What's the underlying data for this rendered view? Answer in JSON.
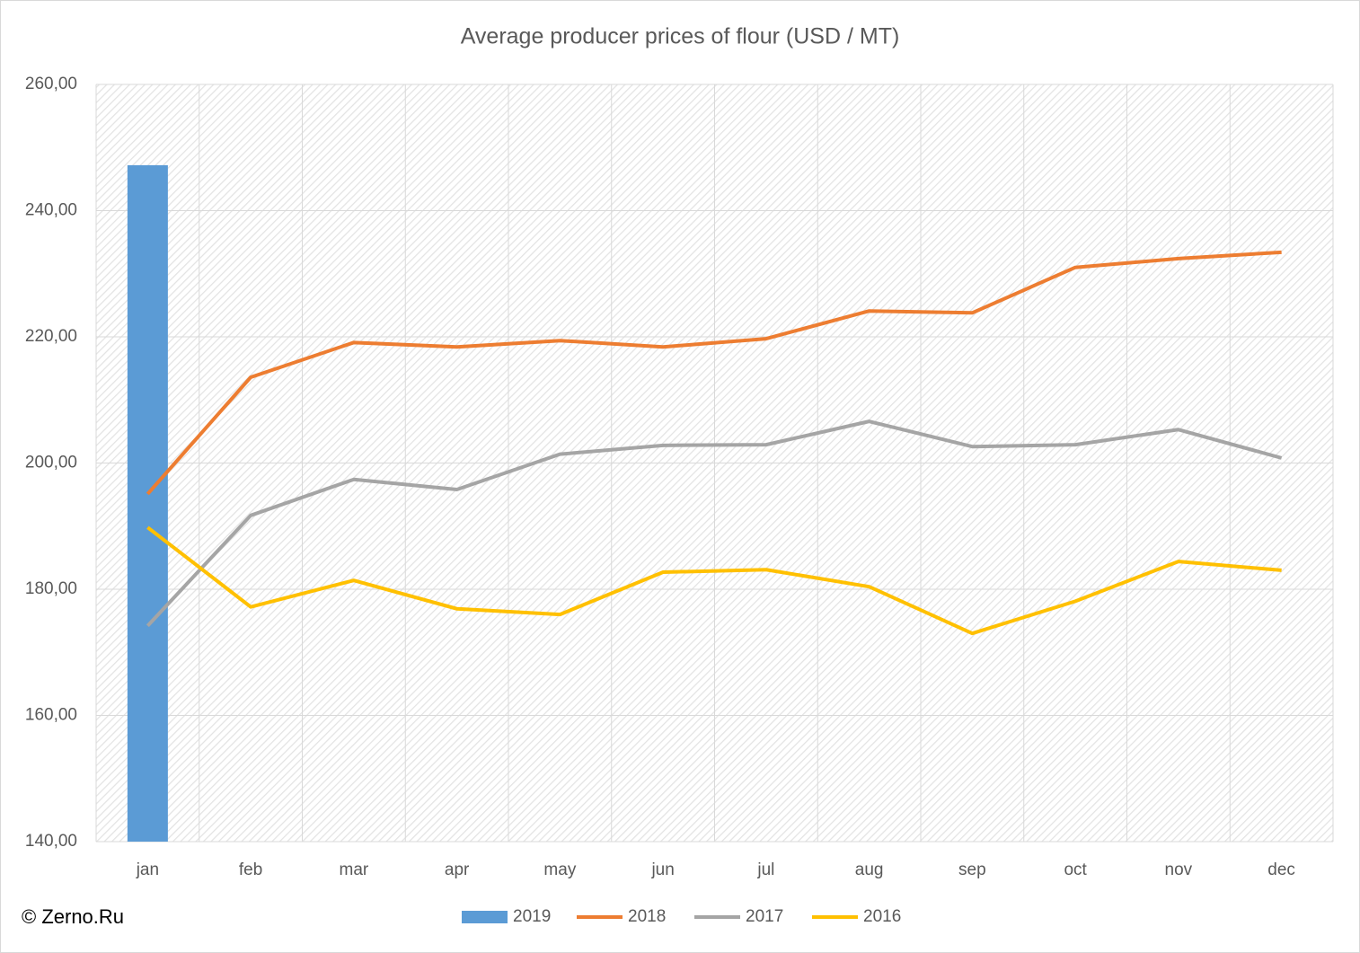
{
  "chart_data": {
    "type": "combo",
    "title": "Average producer prices of flour (USD / MT)",
    "source": "© Zerno.Ru",
    "categories": [
      "jan",
      "feb",
      "mar",
      "apr",
      "may",
      "jun",
      "jul",
      "aug",
      "sep",
      "oct",
      "nov",
      "dec"
    ],
    "series": [
      {
        "name": "2019",
        "type": "bar",
        "color": "#5b9bd5",
        "values": [
          247.2,
          null,
          null,
          null,
          null,
          null,
          null,
          null,
          null,
          null,
          null,
          null
        ]
      },
      {
        "name": "2018",
        "type": "line",
        "color": "#ed7d31",
        "values": [
          195.1,
          213.6,
          219.1,
          218.4,
          219.4,
          218.4,
          219.7,
          224.1,
          223.8,
          231.0,
          232.4,
          233.4
        ]
      },
      {
        "name": "2017",
        "type": "line",
        "color": "#a5a5a5",
        "values": [
          174.2,
          191.7,
          197.4,
          195.8,
          201.4,
          202.8,
          202.9,
          206.6,
          202.6,
          202.9,
          205.3,
          200.8
        ]
      },
      {
        "name": "2016",
        "type": "line",
        "color": "#ffc000",
        "values": [
          189.8,
          177.2,
          181.4,
          176.9,
          176.0,
          182.7,
          183.1,
          180.4,
          173.0,
          178.1,
          184.4,
          183.0
        ]
      }
    ],
    "ylim": [
      140,
      260
    ],
    "yticks": [
      {
        "value": 140,
        "label": "140,00"
      },
      {
        "value": 160,
        "label": "160,00"
      },
      {
        "value": 180,
        "label": "180,00"
      },
      {
        "value": 200,
        "label": "200,00"
      },
      {
        "value": 220,
        "label": "220,00"
      },
      {
        "value": 240,
        "label": "240,00"
      },
      {
        "value": 260,
        "label": "260,00"
      }
    ],
    "grid": true,
    "legend": "bottom"
  }
}
